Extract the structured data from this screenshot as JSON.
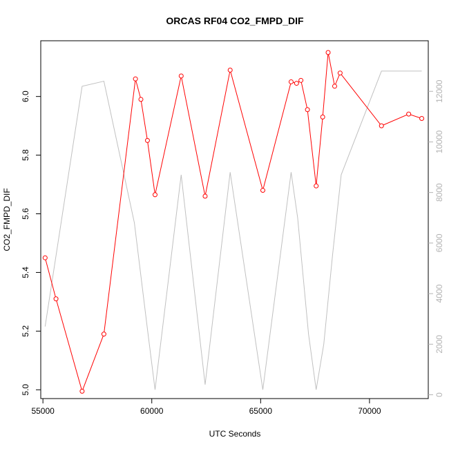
{
  "chart_data": {
    "type": "line",
    "title": "ORCAS RF04 CO2_FMPD_DIF",
    "xlabel": "UTC Seconds",
    "ylabel": "CO2_FMPD_DIF",
    "xlim": [
      54900,
      72700
    ],
    "ylim": [
      4.97,
      6.19
    ],
    "y2lim": [
      -150,
      14000
    ],
    "x_ticks": [
      55000,
      60000,
      65000,
      70000
    ],
    "y_ticks": [
      5.0,
      5.2,
      5.4,
      5.6,
      5.8,
      6.0
    ],
    "y2_ticks": [
      0,
      2000,
      4000,
      6000,
      8000,
      10000,
      12000
    ],
    "grid": false,
    "series": [
      {
        "role": "primary",
        "color": "#ff0000",
        "marker": "open-circle",
        "x": [
          55100,
          55600,
          56800,
          57800,
          59250,
          59500,
          59800,
          60150,
          61350,
          62450,
          63600,
          65100,
          66400,
          66650,
          66850,
          67150,
          67550,
          67850,
          68100,
          68400,
          68650,
          70550,
          71800,
          72400
        ],
        "y": [
          5.45,
          5.31,
          4.995,
          5.19,
          6.06,
          5.99,
          5.85,
          5.665,
          6.07,
          5.66,
          6.09,
          5.68,
          6.05,
          6.045,
          6.055,
          5.955,
          5.695,
          5.93,
          6.15,
          6.035,
          6.08,
          5.9,
          5.94,
          5.925
        ]
      },
      {
        "role": "secondary",
        "color": "#c0c0c0",
        "x": [
          55100,
          56800,
          57800,
          59200,
          59800,
          60150,
          61350,
          62450,
          63600,
          65100,
          66400,
          66700,
          67200,
          67550,
          67900,
          68300,
          68700,
          70550,
          72400
        ],
        "y": [
          2700,
          12200,
          12400,
          6800,
          2600,
          200,
          8700,
          400,
          8800,
          200,
          8800,
          7000,
          2400,
          200,
          2000,
          5500,
          8700,
          12800,
          12800
        ]
      }
    ]
  }
}
